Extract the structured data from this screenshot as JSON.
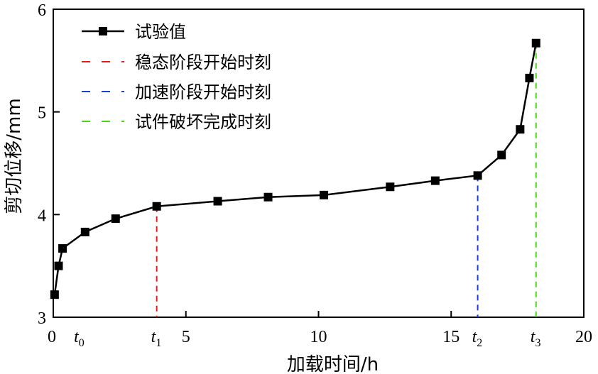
{
  "chart_data": {
    "type": "line",
    "title": "",
    "xlabel": "加载时间/h",
    "ylabel": "剪切位移/mm",
    "xlim": [
      0,
      20
    ],
    "ylim": [
      3,
      6
    ],
    "xticks": [
      {
        "value": 0,
        "label": "0"
      },
      {
        "value": 5,
        "label": "5"
      },
      {
        "value": 10,
        "label": "10"
      },
      {
        "value": 15,
        "label": "15"
      },
      {
        "value": 20,
        "label": "20"
      }
    ],
    "yticks": [
      {
        "value": 3,
        "label": "3"
      },
      {
        "value": 4,
        "label": "4"
      },
      {
        "value": 5,
        "label": "5"
      },
      {
        "value": 6,
        "label": "6"
      }
    ],
    "grid": false,
    "legend_position": "top-left",
    "series": [
      {
        "name": "试验值",
        "color": "#000000",
        "marker": "square",
        "x": [
          0.05,
          0.2,
          0.35,
          1.2,
          2.35,
          3.9,
          6.2,
          8.1,
          10.2,
          12.7,
          14.4,
          16.0,
          16.9,
          17.6,
          17.95,
          18.2
        ],
        "y": [
          3.22,
          3.5,
          3.67,
          3.83,
          3.96,
          4.08,
          4.13,
          4.17,
          4.19,
          4.27,
          4.33,
          4.38,
          4.58,
          4.83,
          5.33,
          5.67
        ]
      }
    ],
    "markers": [
      {
        "name": "稳态阶段开始时刻",
        "x": 3.9,
        "y_top": 4.08,
        "color": "#e02020",
        "label_main": "t",
        "label_sub": "1"
      },
      {
        "name": "加速阶段开始时刻",
        "x": 16.0,
        "y_top": 4.38,
        "color": "#1a3fd8",
        "label_main": "t",
        "label_sub": "2"
      },
      {
        "name": "试件破坏完成时刻",
        "x": 18.2,
        "y_top": 5.67,
        "color": "#49d816",
        "label_main": "t",
        "label_sub": "3"
      }
    ],
    "annotations": [
      {
        "x": 0.35,
        "label_main": "t",
        "label_sub": "0"
      }
    ]
  }
}
